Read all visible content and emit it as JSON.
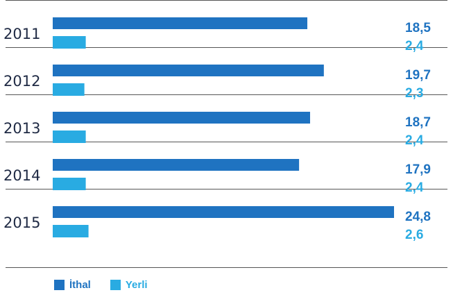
{
  "chart_data": {
    "type": "bar",
    "orientation": "horizontal",
    "categories": [
      "2011",
      "2012",
      "2013",
      "2014",
      "2015"
    ],
    "series": [
      {
        "name": "İthal",
        "values": [
          18.5,
          19.7,
          18.7,
          17.9,
          24.8
        ],
        "labels": [
          "18,5",
          "19,7",
          "18,7",
          "17,9",
          "24,8"
        ],
        "color": "#1f73c1"
      },
      {
        "name": "Yerli",
        "values": [
          2.4,
          2.3,
          2.4,
          2.4,
          2.6
        ],
        "labels": [
          "2,4",
          "2,3",
          "2,4",
          "2,4",
          "2,6"
        ],
        "color": "#29abe2"
      }
    ],
    "title": "",
    "xlabel": "",
    "ylabel": "",
    "xlim": [
      0,
      24.8
    ],
    "grid": false,
    "legend_position": "bottom-left",
    "colors": {
      "text": "#1f2a44",
      "divider": "#555555"
    }
  }
}
